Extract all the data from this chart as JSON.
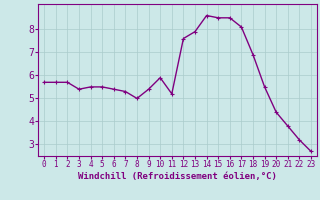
{
  "x": [
    0,
    1,
    2,
    3,
    4,
    5,
    6,
    7,
    8,
    9,
    10,
    11,
    12,
    13,
    14,
    15,
    16,
    17,
    18,
    19,
    20,
    21,
    22,
    23
  ],
  "y": [
    5.7,
    5.7,
    5.7,
    5.4,
    5.5,
    5.5,
    5.4,
    5.3,
    5.0,
    5.4,
    5.9,
    5.2,
    7.6,
    7.9,
    8.6,
    8.5,
    8.5,
    8.1,
    6.9,
    5.5,
    4.4,
    3.8,
    3.2,
    2.7
  ],
  "line_color": "#800080",
  "marker": "+",
  "marker_size": 3,
  "bg_color": "#cce8e8",
  "grid_color": "#aacccc",
  "xlabel": "Windchill (Refroidissement éolien,°C)",
  "ylim": [
    2.5,
    9.1
  ],
  "xlim": [
    -0.5,
    23.5
  ],
  "yticks": [
    3,
    4,
    5,
    6,
    7,
    8
  ],
  "xticks": [
    0,
    1,
    2,
    3,
    4,
    5,
    6,
    7,
    8,
    9,
    10,
    11,
    12,
    13,
    14,
    15,
    16,
    17,
    18,
    19,
    20,
    21,
    22,
    23
  ],
  "tick_color": "#800080",
  "spine_color": "#800080",
  "xlabel_color": "#800080",
  "xlabel_fontsize": 6.5,
  "ytick_fontsize": 7,
  "xtick_fontsize": 5.5,
  "linewidth": 1.0,
  "markeredgewidth": 0.8
}
